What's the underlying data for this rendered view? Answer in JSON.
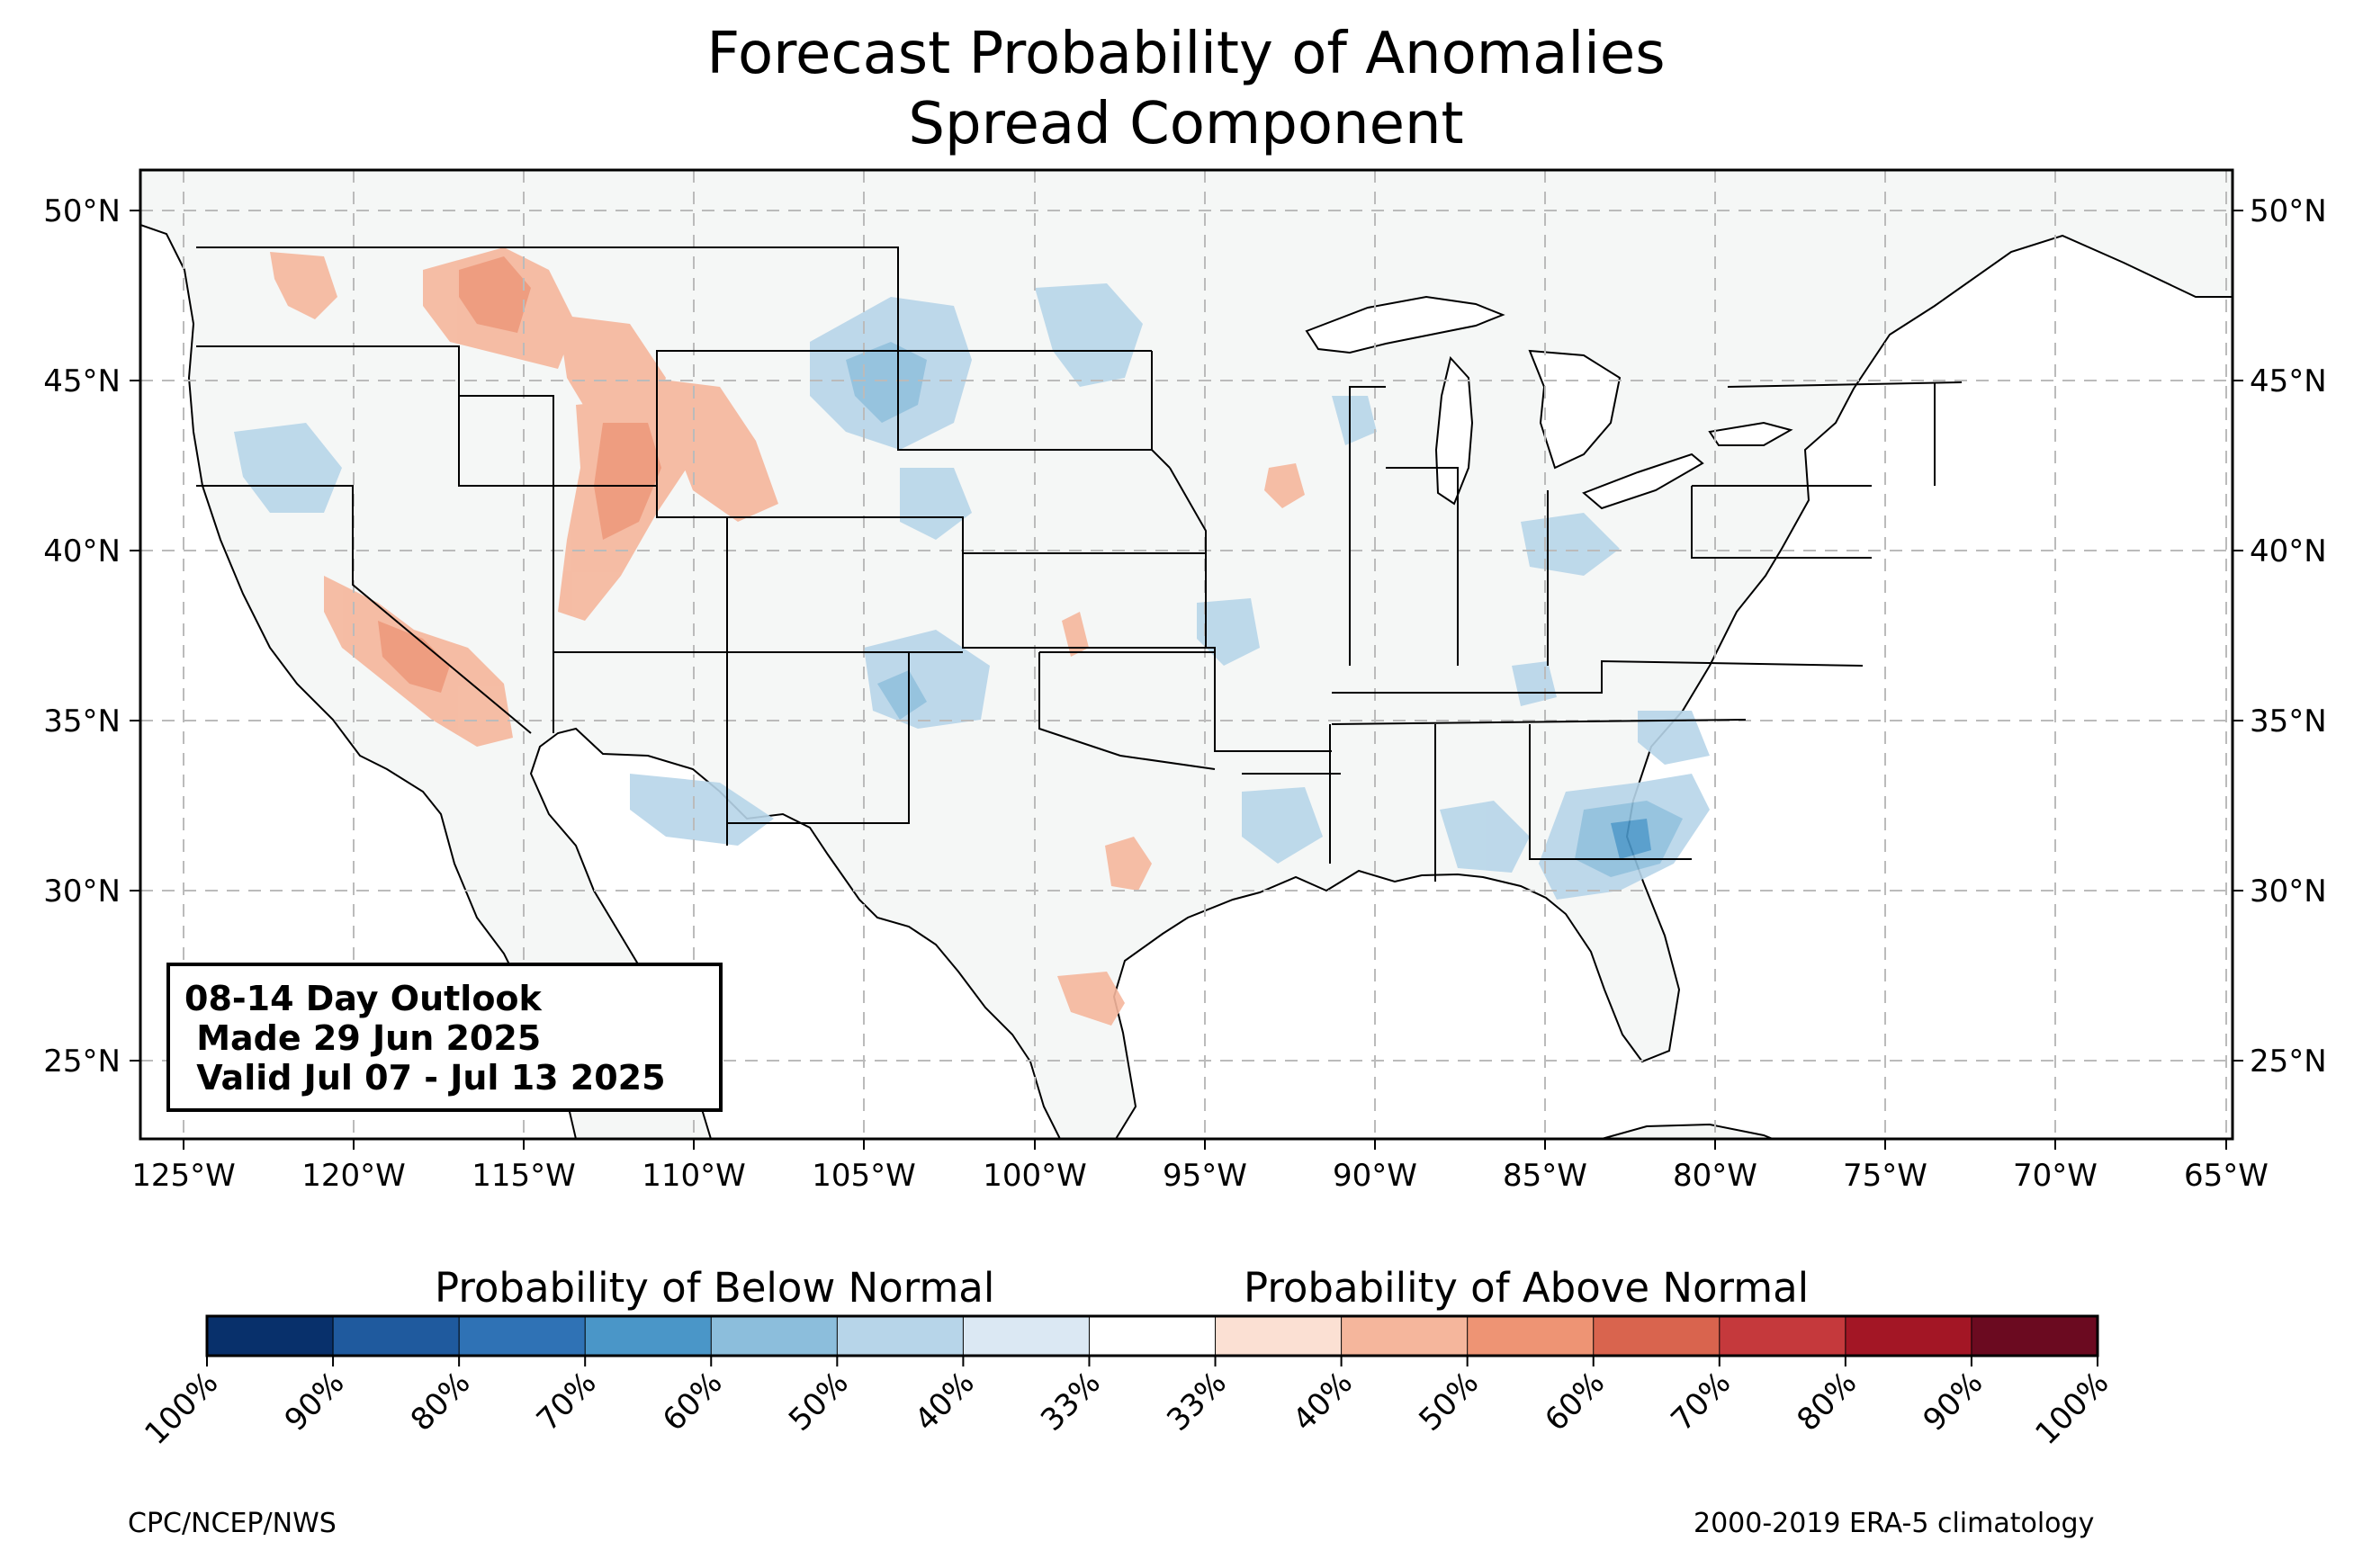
{
  "title": {
    "line1": "Forecast Probability of Anomalies",
    "line2": "Spread Component"
  },
  "map": {
    "lon_labels": [
      "125°W",
      "120°W",
      "115°W",
      "110°W",
      "105°W",
      "100°W",
      "95°W",
      "90°W",
      "85°W",
      "80°W",
      "75°W",
      "70°W",
      "65°W"
    ],
    "lat_labels": [
      "50°N",
      "45°N",
      "40°N",
      "35°N",
      "30°N",
      "25°N"
    ],
    "lon_range": [
      -126.3,
      -64.9
    ],
    "lat_range": [
      22.7,
      51.2
    ],
    "grid_style": "dashed",
    "land_color": "#f5f7f6",
    "ocean_color": "#ffffff"
  },
  "outlook_box": {
    "line1": "08-14 Day Outlook",
    "line2": " Made 29 Jun 2025",
    "line3": " Valid Jul 07 - Jul 13 2025"
  },
  "colorbar": {
    "below_heading": "Probability of Below Normal",
    "above_heading": "Probability of Above Normal",
    "tick_labels": [
      "100%",
      "90%",
      "80%",
      "70%",
      "60%",
      "50%",
      "40%",
      "33%",
      "33%",
      "40%",
      "50%",
      "60%",
      "70%",
      "80%",
      "90%",
      "100%"
    ],
    "colors": [
      "#08306b",
      "#1f5a9e",
      "#2f72b5",
      "#4a96c8",
      "#8cbedc",
      "#b7d5e9",
      "#dbe8f3",
      "#ffffff",
      "#fbe0d3",
      "#f5b69c",
      "#ee9474",
      "#d9644e",
      "#c5393c",
      "#a31625",
      "#6b0a20"
    ]
  },
  "credits": {
    "left": "CPC/NCEP/NWS",
    "right": "2000-2019 ERA-5 climatology"
  }
}
